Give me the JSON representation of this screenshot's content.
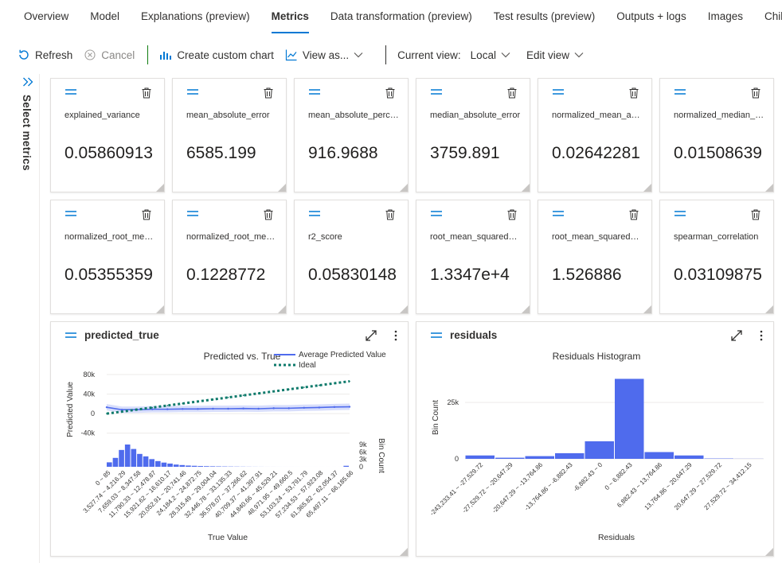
{
  "tabs": [
    {
      "label": "Overview",
      "active": false
    },
    {
      "label": "Model",
      "active": false
    },
    {
      "label": "Explanations (preview)",
      "active": false
    },
    {
      "label": "Metrics",
      "active": true
    },
    {
      "label": "Data transformation (preview)",
      "active": false
    },
    {
      "label": "Test results (preview)",
      "active": false
    },
    {
      "label": "Outputs + logs",
      "active": false
    },
    {
      "label": "Images",
      "active": false
    },
    {
      "label": "Child jobs",
      "active": false
    }
  ],
  "toolbar": {
    "refresh": "Refresh",
    "cancel": "Cancel",
    "create_chart": "Create custom chart",
    "view_as": "View as...",
    "current_view_label": "Current view:",
    "current_view_value": "Local",
    "edit_view": "Edit view"
  },
  "rail": {
    "label": "Select metrics"
  },
  "metrics": [
    {
      "name": "explained_variance",
      "value": "0.05860913"
    },
    {
      "name": "mean_absolute_error",
      "value": "6585.199"
    },
    {
      "name": "mean_absolute_perce...",
      "value": "916.9688"
    },
    {
      "name": "median_absolute_error",
      "value": "3759.891"
    },
    {
      "name": "normalized_mean_abs...",
      "value": "0.02642281"
    },
    {
      "name": "normalized_median_a...",
      "value": "0.01508639"
    },
    {
      "name": "normalized_root_mea...",
      "value": "0.05355359"
    },
    {
      "name": "normalized_root_mea...",
      "value": "0.1228772"
    },
    {
      "name": "r2_score",
      "value": "0.05830148"
    },
    {
      "name": "root_mean_squared_er...",
      "value": "1.3347e+4"
    },
    {
      "name": "root_mean_squared_lo...",
      "value": "1.526886"
    },
    {
      "name": "spearman_correlation",
      "value": "0.03109875"
    }
  ],
  "colors": {
    "accent": "#0078d4",
    "green_separator": "#107c10",
    "series_avg": "#4f6bed",
    "series_ideal": "#0e7a6b",
    "hist_bar": "#4f6bed"
  },
  "panels": {
    "predicted_true": {
      "title": "predicted_true"
    },
    "residuals": {
      "title": "residuals"
    }
  },
  "chart_data": [
    {
      "type": "line",
      "title": "Predicted vs. True",
      "xlabel": "True Value",
      "ylabel": "Predicted Value",
      "secondary_ylabel": "Bin Count",
      "legend_position": "top-right",
      "ylim": [
        -60000,
        80000
      ],
      "y_ticks": [
        "80k",
        "40k",
        "0",
        "-40k"
      ],
      "y_tick_values": [
        80000,
        40000,
        0,
        -40000
      ],
      "count_ticks": [
        "9k",
        "6k",
        "3k",
        "0"
      ],
      "count_tick_values": [
        9000,
        6000,
        3000,
        0
      ],
      "categories": [
        "0 ~ 85",
        "3,527.74 ~ 4,216.29",
        "7,659.03 ~ 8,347.58",
        "11,790.33 ~ 12,478.87",
        "15,921.62 ~ 16,610.17",
        "20,052.91 ~ 20,741.46",
        "24,184.2 ~ 24,872.75",
        "28,315.49 ~ 29,004.04",
        "32,446.78 ~ 33,135.33",
        "36,578.07 ~ 37,266.62",
        "40,709.37 ~ 41,397.91",
        "44,840.66 ~ 45,529.21",
        "48,971.95 ~ 49,660.5",
        "53,103.24 ~ 53,791.79",
        "57,234.53 ~ 57,923.08",
        "61,365.82 ~ 62,054.37",
        "65,497.11 ~ 66,185.66"
      ],
      "series": [
        {
          "name": "Average Predicted Value",
          "values": [
            13000,
            8000,
            8000,
            9000,
            9000,
            9500,
            9500,
            10000,
            10000,
            10500,
            10000,
            11000,
            11000,
            12000,
            12500,
            13500,
            14000
          ]
        },
        {
          "name": "Ideal",
          "values": [
            0,
            4100,
            8300,
            12400,
            16600,
            20700,
            24800,
            29000,
            33100,
            37300,
            41400,
            45500,
            49700,
            53800,
            57900,
            62100,
            66200
          ]
        }
      ],
      "bin_counts": [
        1800,
        3600,
        6800,
        9000,
        7200,
        5200,
        4200,
        3100,
        2300,
        1700,
        1300,
        900,
        700,
        500,
        400,
        300,
        250,
        200,
        160,
        130,
        100,
        80,
        60,
        40,
        30,
        20,
        10,
        10,
        8,
        6,
        5,
        4,
        3,
        3,
        2,
        2,
        1,
        1,
        1,
        400
      ]
    },
    {
      "type": "bar",
      "title": "Residuals Histogram",
      "xlabel": "Residuals",
      "ylabel": "Bin Count",
      "ylim": [
        0,
        36000
      ],
      "y_ticks": [
        "25k",
        "0"
      ],
      "y_tick_values": [
        25000,
        0
      ],
      "categories": [
        "-243,233.41 ~ -27,529.72",
        "-27,529.72 ~ -20,647.29",
        "-20,647.29 ~ -13,764.86",
        "-13,764.86 ~ -6,882.43",
        "-6,882.43 ~ 0",
        "0 ~ 6,882.43",
        "6,882.43 ~ 13,764.86",
        "13,764.86 ~ 20,647.29",
        "20,647.29 ~ 27,529.72",
        "27,529.72 ~ 34,412.15"
      ],
      "values": [
        1500,
        500,
        1200,
        2500,
        7800,
        35500,
        3000,
        1500,
        150,
        50
      ]
    }
  ]
}
